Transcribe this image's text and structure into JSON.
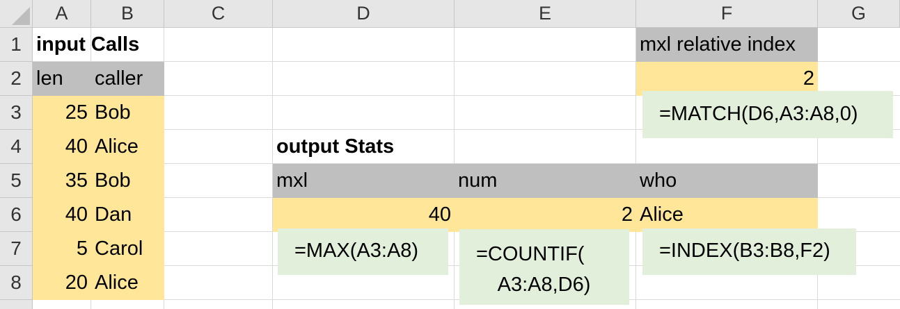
{
  "columns": [
    "A",
    "B",
    "C",
    "D",
    "E",
    "F",
    "G"
  ],
  "rows": [
    "1",
    "2",
    "3",
    "4",
    "5",
    "6",
    "7",
    "8"
  ],
  "input": {
    "title": "input Calls",
    "header_len": "len",
    "header_caller": "caller",
    "len": [
      "25",
      "40",
      "35",
      "40",
      "5",
      "20"
    ],
    "caller": [
      "Bob",
      "Alice",
      "Bob",
      "Dan",
      "Carol",
      "Alice"
    ]
  },
  "output": {
    "title": "output Stats",
    "header_mxl": "mxl",
    "header_num": "num",
    "header_who": "who",
    "mxl": "40",
    "num": "2",
    "who": "Alice"
  },
  "relative": {
    "header": "mxl relative index",
    "value": "2"
  },
  "formulas": {
    "match": "=MATCH(D6,A3:A8,0)",
    "max": "=MAX(A3:A8)",
    "countif": "=COUNTIF(\n    A3:A8,D6)",
    "index": "=INDEX(B3:B8,F2)"
  },
  "colors": {
    "input_fill": "#ffe699",
    "header_fill": "#bfbfbf",
    "formula_fill": "#e2efda",
    "header_bg": "#e6e6e6"
  }
}
